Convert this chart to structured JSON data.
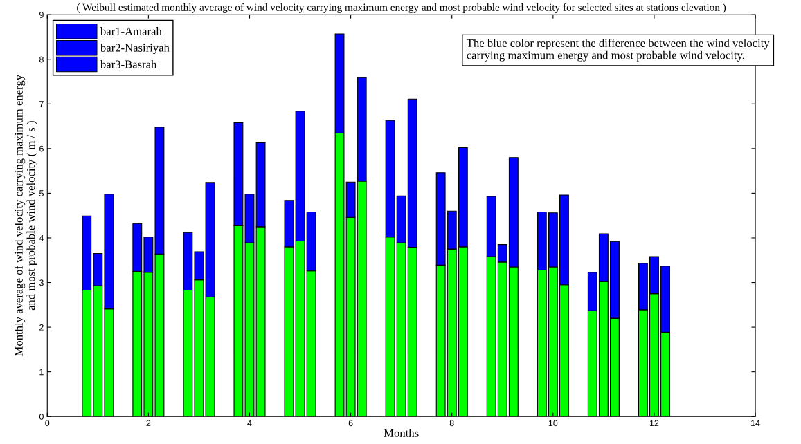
{
  "chart_data": {
    "type": "bar",
    "stacked": true,
    "title": "( Weibull estimated monthly average of wind velocity carrying maximum energy and most probable wind velocity for selected sites at stations elevation )",
    "xlabel": "Months",
    "ylabel": "Monthly average of wind velocity carrying maximum energy\nand most probable wind velocity ( m / s )",
    "xlim": [
      0,
      14
    ],
    "xticks": [
      0,
      2,
      4,
      6,
      8,
      10,
      12,
      14
    ],
    "ylim": [
      0,
      9
    ],
    "yticks": [
      0,
      1,
      2,
      3,
      4,
      5,
      6,
      7,
      8,
      9
    ],
    "grid": false,
    "legend": "top left",
    "annotations": [
      "The blue color represent the difference between the wind velocity\ncarrying maximum energy and most probable wind velocity."
    ],
    "x": [
      0.78,
      1,
      1.22,
      1.78,
      2,
      2.22,
      2.78,
      3,
      3.22,
      3.78,
      4,
      4.22,
      4.78,
      5,
      5.22,
      5.78,
      6,
      6.22,
      6.78,
      7,
      7.22,
      7.78,
      8,
      8.22,
      8.78,
      9,
      9.22,
      9.78,
      10,
      10.22,
      10.78,
      11,
      11.22,
      11.78,
      12,
      12.22
    ],
    "series": [
      {
        "color": "#00ff00",
        "values": [
          2.83,
          null,
          null,
          3.25,
          null,
          null,
          2.83,
          null,
          null,
          4.27,
          null,
          null,
          3.8,
          null,
          null,
          6.35,
          null,
          null,
          4.02,
          null,
          null,
          3.39,
          null,
          null,
          3.58,
          null,
          null,
          3.28,
          null,
          null,
          2.37,
          null,
          null,
          2.39,
          null,
          null
        ]
      },
      {
        "name": "bar1-Amarah",
        "color": "#0000ff",
        "values": [
          1.66,
          null,
          null,
          1.07,
          null,
          null,
          1.29,
          null,
          null,
          2.31,
          null,
          null,
          1.04,
          null,
          null,
          2.22,
          null,
          null,
          2.61,
          null,
          null,
          2.07,
          null,
          null,
          1.35,
          null,
          null,
          1.3,
          null,
          null,
          0.86,
          null,
          null,
          1.04,
          null,
          null
        ]
      },
      {
        "color": "#00ff00",
        "values": [
          null,
          2.93,
          null,
          null,
          3.23,
          null,
          null,
          3.06,
          null,
          null,
          3.89,
          null,
          null,
          3.93,
          null,
          null,
          4.46,
          null,
          null,
          3.89,
          null,
          null,
          3.75,
          null,
          null,
          3.46,
          null,
          null,
          3.35,
          null,
          null,
          3.02,
          null,
          null,
          2.75,
          null
        ]
      },
      {
        "name": "bar2-Nasiriyah",
        "color": "#0000ff",
        "values": [
          null,
          0.72,
          null,
          null,
          0.79,
          null,
          null,
          0.63,
          null,
          null,
          1.09,
          null,
          null,
          2.91,
          null,
          null,
          0.79,
          null,
          null,
          1.05,
          null,
          null,
          0.85,
          null,
          null,
          0.39,
          null,
          null,
          1.21,
          null,
          null,
          1.07,
          null,
          null,
          0.83,
          null
        ]
      },
      {
        "color": "#00ff00",
        "values": [
          null,
          null,
          2.41,
          null,
          null,
          3.64,
          null,
          null,
          2.68,
          null,
          null,
          4.25,
          null,
          null,
          3.26,
          null,
          null,
          5.27,
          null,
          null,
          3.79,
          null,
          null,
          3.8,
          null,
          null,
          3.35,
          null,
          null,
          2.95,
          null,
          null,
          2.2,
          null,
          null,
          1.89
        ]
      },
      {
        "name": "bar3-Basrah",
        "color": "#0000ff",
        "values": [
          null,
          null,
          2.57,
          null,
          null,
          2.84,
          null,
          null,
          2.56,
          null,
          null,
          1.88,
          null,
          null,
          1.32,
          null,
          null,
          2.32,
          null,
          null,
          3.32,
          null,
          null,
          2.22,
          null,
          null,
          2.45,
          null,
          null,
          2.01,
          null,
          null,
          1.72,
          null,
          null,
          1.48
        ]
      }
    ]
  }
}
